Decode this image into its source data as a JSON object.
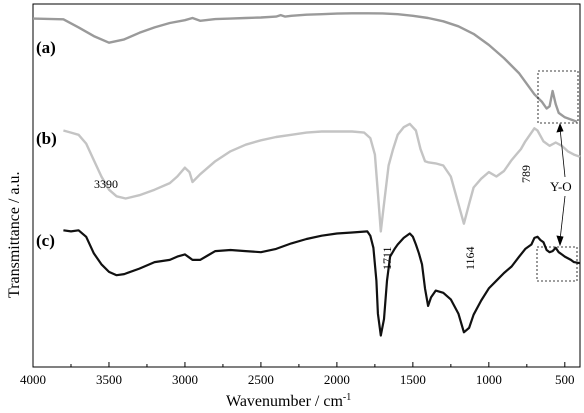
{
  "chart_data": {
    "type": "line",
    "xlabel": "Wavenumber / cm",
    "xlabel_superscript": "-1",
    "ylabel": "Transmittance / a.u.",
    "xlim": [
      4000,
      400
    ],
    "x_ticks": [
      4000,
      3500,
      3000,
      2500,
      2000,
      1500,
      1000,
      500
    ],
    "y_ticks_shown": false,
    "grid": false,
    "series": [
      {
        "name": "(a)",
        "color": "#9a9a9a",
        "x": [
          4000,
          3900,
          3800,
          3700,
          3600,
          3500,
          3400,
          3300,
          3200,
          3100,
          3000,
          2950,
          2900,
          2800,
          2700,
          2600,
          2500,
          2400,
          2370,
          2340,
          2300,
          2200,
          2100,
          2000,
          1900,
          1800,
          1700,
          1600,
          1500,
          1400,
          1300,
          1200,
          1100,
          1000,
          900,
          800,
          700,
          650,
          620,
          600,
          580,
          560,
          540,
          500,
          460,
          420
        ],
        "y": [
          0.6,
          0.63,
          0.67,
          1.4,
          2.2,
          2.8,
          2.5,
          1.9,
          1.4,
          1.0,
          0.75,
          0.55,
          0.8,
          0.65,
          0.6,
          0.55,
          0.5,
          0.42,
          0.28,
          0.42,
          0.35,
          0.25,
          0.2,
          0.15,
          0.12,
          0.12,
          0.13,
          0.2,
          0.35,
          0.55,
          0.85,
          1.3,
          2.0,
          3.0,
          4.2,
          5.6,
          7.5,
          8.2,
          8.8,
          8.6,
          7.2,
          8.4,
          9.2,
          9.6,
          9.8,
          10.0
        ]
      },
      {
        "name": "(b)",
        "color": "#c4c4c4",
        "x": [
          3800,
          3750,
          3700,
          3650,
          3600,
          3550,
          3500,
          3450,
          3390,
          3300,
          3200,
          3100,
          3050,
          3000,
          2970,
          2950,
          2900,
          2800,
          2700,
          2600,
          2500,
          2400,
          2300,
          2200,
          2100,
          2000,
          1900,
          1820,
          1780,
          1750,
          1730,
          1711,
          1690,
          1660,
          1630,
          1600,
          1560,
          1520,
          1480,
          1450,
          1420,
          1400,
          1350,
          1300,
          1250,
          1200,
          1164,
          1130,
          1100,
          1050,
          1000,
          950,
          900,
          850,
          820,
          789,
          760,
          730,
          700,
          680,
          640,
          600,
          560,
          520,
          480,
          440,
          400
        ],
        "y": [
          10.8,
          11.0,
          11.2,
          12.0,
          13.5,
          15.0,
          16.2,
          16.8,
          17.0,
          16.7,
          16.2,
          15.6,
          15.0,
          14.2,
          14.6,
          15.5,
          14.8,
          13.6,
          12.7,
          12.1,
          11.7,
          11.4,
          11.2,
          11.0,
          10.9,
          10.9,
          10.9,
          11.0,
          11.5,
          13.0,
          16.5,
          20.0,
          17.5,
          14.0,
          12.5,
          11.2,
          10.5,
          10.2,
          10.8,
          12.5,
          13.6,
          13.7,
          13.8,
          14.0,
          15.0,
          17.5,
          19.3,
          17.5,
          16.0,
          15.2,
          14.6,
          15.0,
          14.5,
          13.5,
          13.0,
          12.5,
          11.8,
          11.2,
          10.6,
          10.8,
          11.8,
          12.2,
          11.9,
          12.2,
          12.7,
          13.0,
          13.2
        ]
      },
      {
        "name": "(c)",
        "color": "#111111",
        "x": [
          3800,
          3750,
          3700,
          3650,
          3600,
          3550,
          3500,
          3450,
          3400,
          3300,
          3200,
          3100,
          3050,
          3000,
          2970,
          2950,
          2900,
          2850,
          2800,
          2700,
          2600,
          2500,
          2400,
          2300,
          2200,
          2100,
          2000,
          1900,
          1800,
          1780,
          1760,
          1740,
          1730,
          1711,
          1690,
          1670,
          1650,
          1620,
          1600,
          1560,
          1520,
          1500,
          1480,
          1460,
          1440,
          1420,
          1400,
          1380,
          1350,
          1300,
          1250,
          1200,
          1164,
          1130,
          1100,
          1050,
          1000,
          950,
          900,
          850,
          800,
          760,
          720,
          700,
          680,
          660,
          640,
          620,
          600,
          580,
          560,
          540,
          520,
          500,
          460,
          440,
          400
        ],
        "y": [
          19.9,
          20.0,
          19.9,
          20.5,
          22.0,
          23.0,
          23.7,
          24.0,
          23.9,
          23.4,
          22.8,
          22.6,
          22.3,
          22.1,
          22.4,
          22.6,
          22.6,
          22.2,
          21.8,
          21.7,
          21.8,
          21.9,
          21.6,
          21.1,
          20.7,
          20.4,
          20.2,
          20.1,
          20.0,
          20.4,
          21.5,
          24.5,
          27.5,
          29.5,
          28.0,
          24.5,
          22.3,
          21.6,
          21.2,
          20.6,
          20.2,
          20.5,
          21.2,
          22.0,
          23.0,
          25.2,
          26.8,
          26.0,
          25.4,
          25.6,
          26.2,
          27.5,
          29.2,
          28.8,
          27.6,
          26.3,
          25.2,
          24.5,
          23.8,
          23.2,
          22.3,
          21.6,
          21.2,
          20.6,
          20.5,
          20.8,
          21.0,
          21.7,
          21.9,
          21.8,
          21.5,
          21.9,
          22.1,
          22.3,
          22.6,
          22.8,
          22.9
        ]
      }
    ],
    "y_range": [
      0,
      31
    ],
    "annotations": {
      "peak_labels": [
        "3390",
        "1711",
        "1164",
        "789"
      ],
      "yo_label": "Y-O"
    }
  }
}
